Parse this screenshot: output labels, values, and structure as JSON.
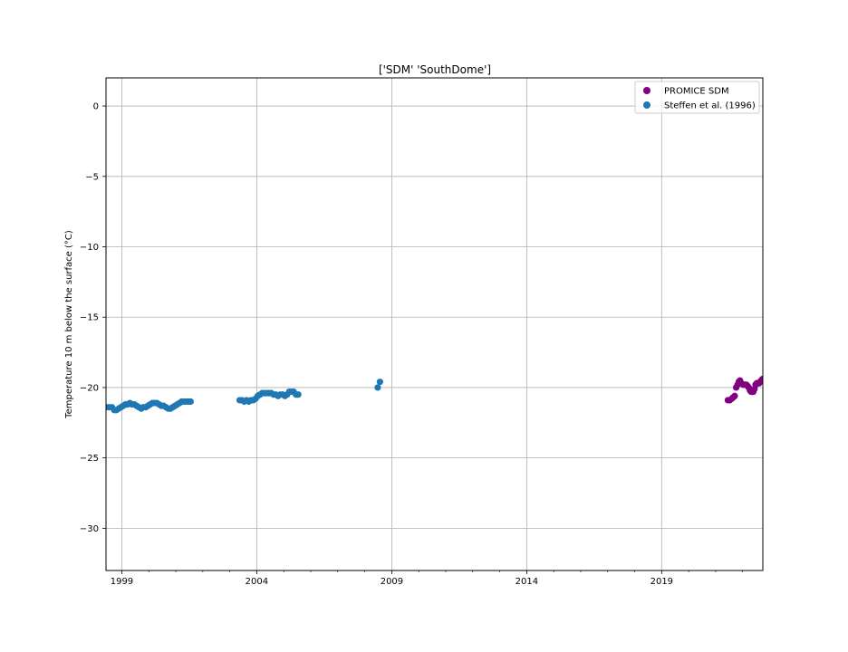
{
  "chart_data": {
    "type": "scatter",
    "title": "['SDM' 'SouthDome']",
    "ylabel": "Temperature 10 m below the surface (°C)",
    "xlabel": "",
    "xlim": [
      "1998-06-01",
      "2022-10-01"
    ],
    "ylim": [
      -33,
      2
    ],
    "yticks": [
      0,
      -5,
      -10,
      -15,
      -20,
      -25,
      -30
    ],
    "xticks": [
      "1999",
      "2004",
      "2009",
      "2014",
      "2019"
    ],
    "grid": true,
    "legend_position": "top-right",
    "series": [
      {
        "name": "PROMICE SDM",
        "color": "#800080",
        "points": [
          [
            "2021-06-15",
            -20.9
          ],
          [
            "2021-07-10",
            -20.9
          ],
          [
            "2021-08-05",
            -20.8
          ],
          [
            "2021-08-25",
            -20.7
          ],
          [
            "2021-09-15",
            -20.6
          ],
          [
            "2021-10-05",
            -20.0
          ],
          [
            "2021-10-25",
            -19.8
          ],
          [
            "2021-11-10",
            -19.6
          ],
          [
            "2021-11-25",
            -19.5
          ],
          [
            "2021-12-15",
            -19.7
          ],
          [
            "2022-01-10",
            -19.8
          ],
          [
            "2022-02-01",
            -19.8
          ],
          [
            "2022-02-20",
            -19.8
          ],
          [
            "2022-03-10",
            -19.9
          ],
          [
            "2022-03-25",
            -20.0
          ],
          [
            "2022-04-10",
            -20.2
          ],
          [
            "2022-04-25",
            -20.3
          ],
          [
            "2022-05-10",
            -20.3
          ],
          [
            "2022-05-25",
            -20.3
          ],
          [
            "2022-06-10",
            -20.1
          ],
          [
            "2022-06-25",
            -19.8
          ],
          [
            "2022-07-10",
            -19.7
          ],
          [
            "2022-07-25",
            -19.7
          ],
          [
            "2022-08-10",
            -19.7
          ],
          [
            "2022-08-25",
            -19.6
          ],
          [
            "2022-09-10",
            -19.5
          ],
          [
            "2022-09-25",
            -19.4
          ]
        ]
      },
      {
        "name": "Steffen et al. (1996)",
        "color": "#1f77b4",
        "points": [
          [
            "1998-06-01",
            -21.4
          ],
          [
            "1998-07-10",
            -21.4
          ],
          [
            "1998-08-20",
            -21.4
          ],
          [
            "1998-09-20",
            -21.6
          ],
          [
            "1998-10-20",
            -21.6
          ],
          [
            "1998-11-20",
            -21.5
          ],
          [
            "1998-12-20",
            -21.4
          ],
          [
            "1999-01-20",
            -21.3
          ],
          [
            "1999-02-20",
            -21.2
          ],
          [
            "1999-03-20",
            -21.2
          ],
          [
            "1999-04-20",
            -21.1
          ],
          [
            "1999-05-20",
            -21.2
          ],
          [
            "1999-06-20",
            -21.2
          ],
          [
            "1999-07-20",
            -21.3
          ],
          [
            "1999-08-20",
            -21.4
          ],
          [
            "1999-09-20",
            -21.5
          ],
          [
            "1999-10-20",
            -21.4
          ],
          [
            "1999-11-20",
            -21.4
          ],
          [
            "1999-12-20",
            -21.3
          ],
          [
            "2000-01-20",
            -21.2
          ],
          [
            "2000-02-20",
            -21.1
          ],
          [
            "2000-03-20",
            -21.1
          ],
          [
            "2000-04-20",
            -21.1
          ],
          [
            "2000-05-20",
            -21.2
          ],
          [
            "2000-06-20",
            -21.3
          ],
          [
            "2000-07-20",
            -21.3
          ],
          [
            "2000-08-20",
            -21.4
          ],
          [
            "2000-09-20",
            -21.5
          ],
          [
            "2000-10-20",
            -21.5
          ],
          [
            "2000-11-20",
            -21.4
          ],
          [
            "2000-12-20",
            -21.3
          ],
          [
            "2001-01-20",
            -21.2
          ],
          [
            "2001-02-20",
            -21.1
          ],
          [
            "2001-03-20",
            -21.0
          ],
          [
            "2001-04-20",
            -21.0
          ],
          [
            "2001-05-20",
            -21.0
          ],
          [
            "2001-06-20",
            -21.0
          ],
          [
            "2001-07-20",
            -21.0
          ],
          [
            "2003-05-15",
            -20.9
          ],
          [
            "2003-06-15",
            -20.9
          ],
          [
            "2003-07-15",
            -21.0
          ],
          [
            "2003-08-15",
            -20.9
          ],
          [
            "2003-09-15",
            -21.0
          ],
          [
            "2003-10-15",
            -20.9
          ],
          [
            "2003-11-15",
            -20.9
          ],
          [
            "2003-12-15",
            -20.8
          ],
          [
            "2004-01-15",
            -20.6
          ],
          [
            "2004-02-15",
            -20.5
          ],
          [
            "2004-03-15",
            -20.4
          ],
          [
            "2004-04-15",
            -20.4
          ],
          [
            "2004-05-15",
            -20.4
          ],
          [
            "2004-06-15",
            -20.4
          ],
          [
            "2004-07-15",
            -20.4
          ],
          [
            "2004-08-15",
            -20.5
          ],
          [
            "2004-09-15",
            -20.5
          ],
          [
            "2004-10-15",
            -20.6
          ],
          [
            "2004-11-15",
            -20.5
          ],
          [
            "2004-12-15",
            -20.5
          ],
          [
            "2005-01-15",
            -20.6
          ],
          [
            "2005-02-15",
            -20.5
          ],
          [
            "2005-03-15",
            -20.3
          ],
          [
            "2005-04-15",
            -20.3
          ],
          [
            "2005-05-15",
            -20.3
          ],
          [
            "2005-06-15",
            -20.5
          ],
          [
            "2005-07-15",
            -20.5
          ],
          [
            "2008-06-25",
            -20.0
          ],
          [
            "2008-07-25",
            -19.6
          ]
        ]
      }
    ]
  }
}
